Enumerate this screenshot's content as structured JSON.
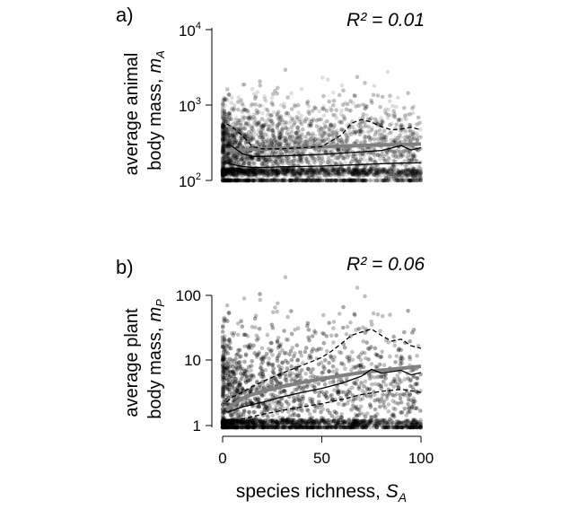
{
  "chart_data": [
    {
      "type": "scatter",
      "panel_label": "a)",
      "ylabel_line1": "average animal",
      "ylabel_line2": "body mass,",
      "ylabel_symbol": "m",
      "ylabel_subscript": "A",
      "xlabel": "",
      "annotation_R2": "R² = 0.01",
      "xlim": [
        0,
        100
      ],
      "ylim": [
        120,
        14000
      ],
      "yscale": "log",
      "yticks": [
        {
          "value": 100,
          "base": "10",
          "exp": "2"
        },
        {
          "value": 1000,
          "base": "10",
          "exp": "3"
        },
        {
          "value": 10000,
          "base": "10",
          "exp": "4"
        }
      ],
      "grid": false,
      "point_color": "#000000",
      "quantile_color": "#000000",
      "fit_color": "#808080",
      "series": [
        {
          "role": "points",
          "cloud": {
            "median": 260,
            "spread": 0.32,
            "dense_floor": 140,
            "count": 5200
          }
        },
        {
          "role": "upper-quantile",
          "style": "dashed",
          "x": [
            2,
            5,
            10,
            15,
            20,
            30,
            40,
            50,
            60,
            65,
            70,
            75,
            80,
            85,
            90,
            95,
            100
          ],
          "y": [
            620,
            560,
            440,
            320,
            300,
            300,
            310,
            320,
            450,
            630,
            700,
            650,
            570,
            520,
            530,
            560,
            520
          ]
        },
        {
          "role": "median",
          "style": "solid",
          "x": [
            2,
            5,
            10,
            15,
            20,
            30,
            40,
            50,
            60,
            70,
            80,
            90,
            95,
            100
          ],
          "y": [
            340,
            320,
            260,
            240,
            240,
            245,
            250,
            255,
            265,
            275,
            285,
            330,
            290,
            310
          ]
        },
        {
          "role": "lower-quantile",
          "style": "solid",
          "x": [
            2,
            5,
            10,
            15,
            20,
            30,
            40,
            50,
            60,
            70,
            80,
            90,
            100
          ],
          "y": [
            200,
            190,
            180,
            175,
            175,
            178,
            180,
            182,
            186,
            190,
            195,
            198,
            200
          ]
        },
        {
          "role": "fit",
          "style": "thick",
          "x": [
            2,
            5,
            10,
            15,
            20,
            30,
            40,
            50,
            60,
            70,
            80,
            90,
            100
          ],
          "y": [
            290,
            290,
            292,
            295,
            298,
            305,
            312,
            318,
            325,
            330,
            335,
            340,
            345
          ]
        }
      ]
    },
    {
      "type": "scatter",
      "panel_label": "b)",
      "ylabel_line1": "average plant",
      "ylabel_line2": "body mass,",
      "ylabel_symbol": "m",
      "ylabel_subscript": "P",
      "xlabel_text": "species richness, ",
      "xlabel_symbol": "S",
      "xlabel_subscript": "A",
      "annotation_R2": "R² = 0.06",
      "xlim": [
        0,
        100
      ],
      "ylim": [
        1,
        180
      ],
      "yscale": "log",
      "xticks": [
        {
          "value": 0,
          "label": "0"
        },
        {
          "value": 50,
          "label": "50"
        },
        {
          "value": 100,
          "label": "100"
        }
      ],
      "yticks": [
        {
          "value": 1,
          "label": "1"
        },
        {
          "value": 10,
          "label": "10"
        },
        {
          "value": 100,
          "label": "100"
        }
      ],
      "grid": false,
      "point_color": "#000000",
      "quantile_color": "#000000",
      "fit_color": "#808080",
      "series": [
        {
          "role": "points",
          "cloud": {
            "median": 2.5,
            "spread": 0.5,
            "dense_floor": 1.05,
            "count": 5200
          }
        },
        {
          "role": "upper-quantile",
          "style": "dashed",
          "x": [
            2,
            5,
            10,
            15,
            20,
            30,
            40,
            50,
            55,
            60,
            65,
            70,
            75,
            80,
            85,
            90,
            95,
            100
          ],
          "y": [
            2.2,
            2.6,
            3.0,
            3.6,
            4.2,
            5.5,
            7.0,
            9.0,
            11,
            14,
            18,
            20,
            22,
            18,
            15,
            16,
            13,
            12
          ]
        },
        {
          "role": "median",
          "style": "solid",
          "x": [
            2,
            5,
            10,
            20,
            30,
            40,
            50,
            60,
            70,
            75,
            80,
            90,
            95,
            100
          ],
          "y": [
            1.6,
            1.7,
            1.9,
            2.2,
            2.6,
            3.0,
            3.4,
            4.0,
            5.0,
            6.2,
            5.5,
            6.0,
            5.2,
            5.6
          ]
        },
        {
          "role": "lower-quantile",
          "style": "dashed",
          "x": [
            2,
            10,
            20,
            30,
            40,
            50,
            60,
            70,
            80,
            90,
            100
          ],
          "y": [
            1.2,
            1.3,
            1.5,
            1.7,
            1.9,
            2.1,
            2.4,
            2.8,
            3.1,
            3.3,
            3.0
          ]
        },
        {
          "role": "fit",
          "style": "thick",
          "x": [
            2,
            5,
            10,
            15,
            20,
            30,
            40,
            50,
            60,
            70,
            80,
            90,
            100
          ],
          "y": [
            1.7,
            2.0,
            2.5,
            2.8,
            3.1,
            3.6,
            4.1,
            4.6,
            5.1,
            5.6,
            6.0,
            6.4,
            6.8
          ]
        }
      ]
    }
  ]
}
